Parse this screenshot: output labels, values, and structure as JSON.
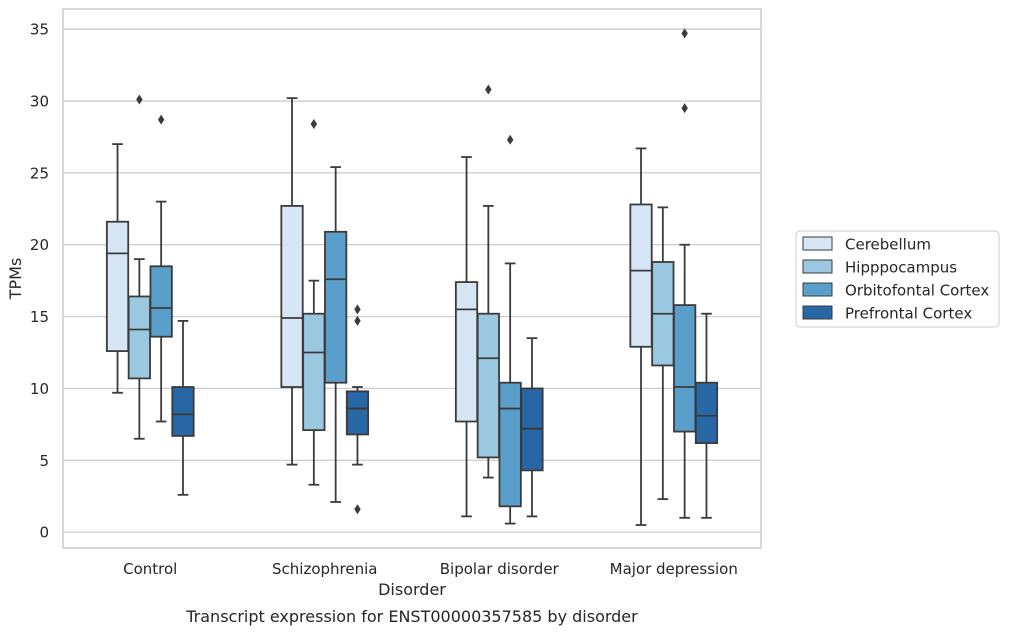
{
  "caption": "Transcript expression for ENST00000357585 by disorder",
  "chart_data": {
    "type": "box",
    "xlabel": "Disorder",
    "ylabel": "TPMs",
    "ylim": [
      -1.1,
      36.4
    ],
    "yticks": [
      0,
      5,
      10,
      15,
      20,
      25,
      30,
      35
    ],
    "grid": true,
    "legend_position": "right",
    "categories": [
      "Control",
      "Schizophrenia",
      "Bipolar disorder",
      "Major depression"
    ],
    "series": [
      {
        "name": "Cerebellum",
        "color": "#d6e6f4",
        "boxes": [
          {
            "whisker_low": 9.7,
            "q1": 12.6,
            "median": 19.4,
            "q3": 21.6,
            "whisker_high": 27.0,
            "outliers": []
          },
          {
            "whisker_low": 4.7,
            "q1": 10.1,
            "median": 14.9,
            "q3": 22.7,
            "whisker_high": 30.2,
            "outliers": []
          },
          {
            "whisker_low": 1.1,
            "q1": 7.7,
            "median": 15.5,
            "q3": 17.4,
            "whisker_high": 26.1,
            "outliers": []
          },
          {
            "whisker_low": 0.5,
            "q1": 12.9,
            "median": 18.2,
            "q3": 22.8,
            "whisker_high": 26.7,
            "outliers": []
          }
        ]
      },
      {
        "name": "Hipppocampus",
        "color": "#9ac8e0",
        "boxes": [
          {
            "whisker_low": 6.5,
            "q1": 10.7,
            "median": 14.1,
            "q3": 16.4,
            "whisker_high": 19.0,
            "outliers": [
              30.1
            ]
          },
          {
            "whisker_low": 3.3,
            "q1": 7.1,
            "median": 12.5,
            "q3": 15.2,
            "whisker_high": 17.5,
            "outliers": [
              28.4
            ]
          },
          {
            "whisker_low": 3.8,
            "q1": 5.2,
            "median": 12.1,
            "q3": 15.2,
            "whisker_high": 22.7,
            "outliers": [
              30.8
            ]
          },
          {
            "whisker_low": 2.3,
            "q1": 11.6,
            "median": 15.2,
            "q3": 18.8,
            "whisker_high": 22.6,
            "outliers": []
          }
        ]
      },
      {
        "name": "Orbitofontal Cortex",
        "color": "#5a9fcc",
        "boxes": [
          {
            "whisker_low": 7.7,
            "q1": 13.6,
            "median": 15.6,
            "q3": 18.5,
            "whisker_high": 23.0,
            "outliers": [
              28.7
            ]
          },
          {
            "whisker_low": 2.1,
            "q1": 10.4,
            "median": 17.6,
            "q3": 20.9,
            "whisker_high": 25.4,
            "outliers": []
          },
          {
            "whisker_low": 0.6,
            "q1": 1.8,
            "median": 8.6,
            "q3": 10.4,
            "whisker_high": 18.7,
            "outliers": [
              27.3
            ]
          },
          {
            "whisker_low": 1.0,
            "q1": 7.0,
            "median": 10.1,
            "q3": 15.8,
            "whisker_high": 20.0,
            "outliers": [
              29.5,
              34.7
            ]
          }
        ]
      },
      {
        "name": "Prefrontal Cortex",
        "color": "#2767a6",
        "boxes": [
          {
            "whisker_low": 2.6,
            "q1": 6.7,
            "median": 8.2,
            "q3": 10.1,
            "whisker_high": 14.7,
            "outliers": []
          },
          {
            "whisker_low": 4.7,
            "q1": 6.8,
            "median": 8.6,
            "q3": 9.8,
            "whisker_high": 10.1,
            "outliers": [
              1.6,
              14.7,
              15.5
            ]
          },
          {
            "whisker_low": 1.1,
            "q1": 4.3,
            "median": 7.2,
            "q3": 10.0,
            "whisker_high": 13.5,
            "outliers": []
          },
          {
            "whisker_low": 1.0,
            "q1": 6.2,
            "median": 8.1,
            "q3": 10.4,
            "whisker_high": 15.2,
            "outliers": []
          }
        ]
      }
    ]
  }
}
